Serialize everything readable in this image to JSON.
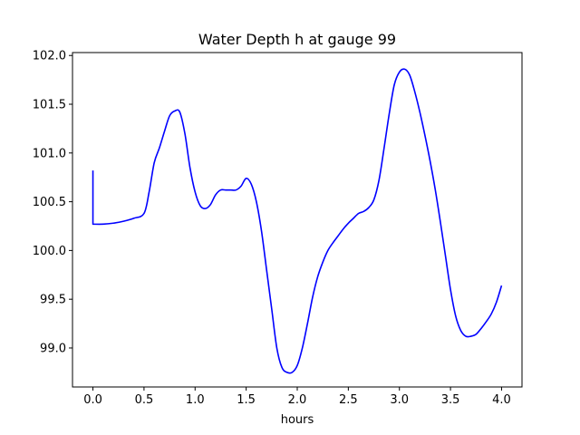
{
  "chart_data": {
    "type": "line",
    "title": "Water Depth h at gauge 99",
    "xlabel": "hours",
    "ylabel": "",
    "xlim": [
      -0.2,
      4.2
    ],
    "ylim": [
      98.6,
      102.03
    ],
    "xticks": [
      {
        "value": 0.0,
        "label": "0.0"
      },
      {
        "value": 0.5,
        "label": "0.5"
      },
      {
        "value": 1.0,
        "label": "1.0"
      },
      {
        "value": 1.5,
        "label": "1.5"
      },
      {
        "value": 2.0,
        "label": "2.0"
      },
      {
        "value": 2.5,
        "label": "2.5"
      },
      {
        "value": 3.0,
        "label": "3.0"
      },
      {
        "value": 3.5,
        "label": "3.5"
      },
      {
        "value": 4.0,
        "label": "4.0"
      }
    ],
    "yticks": [
      {
        "value": 99.0,
        "label": "99.0"
      },
      {
        "value": 99.5,
        "label": "99.5"
      },
      {
        "value": 100.0,
        "label": "100.0"
      },
      {
        "value": 100.5,
        "label": "100.5"
      },
      {
        "value": 101.0,
        "label": "101.0"
      },
      {
        "value": 101.5,
        "label": "101.5"
      },
      {
        "value": 102.0,
        "label": "102.0"
      }
    ],
    "grid": false,
    "legend": "none",
    "series": [
      {
        "color": "#0000ff",
        "points": [
          [
            0.0,
            100.82
          ],
          [
            0.0,
            100.27
          ],
          [
            0.1,
            100.27
          ],
          [
            0.2,
            100.28
          ],
          [
            0.3,
            100.3
          ],
          [
            0.4,
            100.33
          ],
          [
            0.5,
            100.38
          ],
          [
            0.55,
            100.6
          ],
          [
            0.6,
            100.9
          ],
          [
            0.65,
            101.05
          ],
          [
            0.7,
            101.22
          ],
          [
            0.75,
            101.38
          ],
          [
            0.8,
            101.43
          ],
          [
            0.85,
            101.42
          ],
          [
            0.9,
            101.2
          ],
          [
            0.95,
            100.85
          ],
          [
            1.0,
            100.6
          ],
          [
            1.05,
            100.46
          ],
          [
            1.1,
            100.43
          ],
          [
            1.15,
            100.47
          ],
          [
            1.2,
            100.57
          ],
          [
            1.25,
            100.62
          ],
          [
            1.3,
            100.62
          ],
          [
            1.35,
            100.62
          ],
          [
            1.4,
            100.62
          ],
          [
            1.45,
            100.66
          ],
          [
            1.5,
            100.74
          ],
          [
            1.55,
            100.68
          ],
          [
            1.6,
            100.5
          ],
          [
            1.65,
            100.2
          ],
          [
            1.7,
            99.8
          ],
          [
            1.75,
            99.4
          ],
          [
            1.8,
            99.0
          ],
          [
            1.85,
            98.8
          ],
          [
            1.9,
            98.75
          ],
          [
            1.95,
            98.75
          ],
          [
            2.0,
            98.82
          ],
          [
            2.05,
            99.0
          ],
          [
            2.1,
            99.25
          ],
          [
            2.15,
            99.52
          ],
          [
            2.2,
            99.73
          ],
          [
            2.25,
            99.88
          ],
          [
            2.3,
            100.0
          ],
          [
            2.35,
            100.08
          ],
          [
            2.4,
            100.15
          ],
          [
            2.45,
            100.22
          ],
          [
            2.5,
            100.28
          ],
          [
            2.55,
            100.33
          ],
          [
            2.6,
            100.38
          ],
          [
            2.65,
            100.4
          ],
          [
            2.7,
            100.44
          ],
          [
            2.75,
            100.52
          ],
          [
            2.8,
            100.72
          ],
          [
            2.85,
            101.05
          ],
          [
            2.9,
            101.4
          ],
          [
            2.95,
            101.7
          ],
          [
            3.0,
            101.83
          ],
          [
            3.05,
            101.86
          ],
          [
            3.1,
            101.8
          ],
          [
            3.15,
            101.63
          ],
          [
            3.2,
            101.42
          ],
          [
            3.25,
            101.18
          ],
          [
            3.3,
            100.92
          ],
          [
            3.35,
            100.63
          ],
          [
            3.4,
            100.3
          ],
          [
            3.45,
            99.95
          ],
          [
            3.5,
            99.6
          ],
          [
            3.55,
            99.33
          ],
          [
            3.6,
            99.18
          ],
          [
            3.65,
            99.12
          ],
          [
            3.7,
            99.12
          ],
          [
            3.75,
            99.14
          ],
          [
            3.8,
            99.2
          ],
          [
            3.85,
            99.27
          ],
          [
            3.9,
            99.35
          ],
          [
            3.95,
            99.47
          ],
          [
            4.0,
            99.64
          ]
        ]
      }
    ]
  }
}
